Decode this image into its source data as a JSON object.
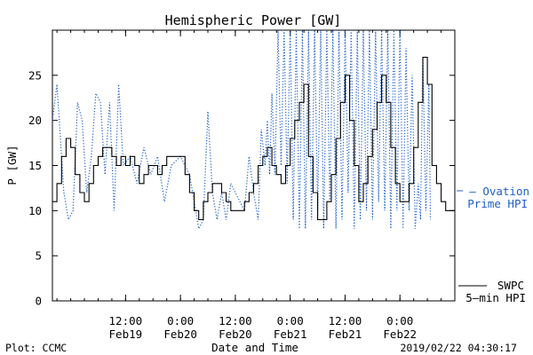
{
  "chart_data": {
    "type": "line",
    "title": "Hemispheric Power [GW]",
    "xlabel": "Date and Time",
    "ylabel": "P [GW]",
    "ylim": [
      0,
      30
    ],
    "yticks": [
      0,
      5,
      10,
      15,
      20,
      25
    ],
    "xlim": [
      "2019-02-18T20:00",
      "2019-02-22T12:00"
    ],
    "xticks": [
      {
        "t": "2019-02-19T12:00",
        "time": "12:00",
        "date": "Feb19"
      },
      {
        "t": "2019-02-20T00:00",
        "time": "0:00",
        "date": "Feb20"
      },
      {
        "t": "2019-02-20T12:00",
        "time": "12:00",
        "date": "Feb20"
      },
      {
        "t": "2019-02-21T00:00",
        "time": "0:00",
        "date": "Feb21"
      },
      {
        "t": "2019-02-21T12:00",
        "time": "12:00",
        "date": "Feb21"
      },
      {
        "t": "2019-02-22T00:00",
        "time": "0:00",
        "date": "Feb22"
      }
    ],
    "grid": false,
    "legend_position": "right",
    "series": [
      {
        "name": "Ovation Prime HPI",
        "legend_lines": [
          "— Ovation",
          "Prime HPI"
        ],
        "style": "dotted",
        "color": "#1f5fc8",
        "points": [
          [
            "2019-02-18T20:00",
            20
          ],
          [
            "2019-02-18T21:00",
            24
          ],
          [
            "2019-02-18T22:30",
            12
          ],
          [
            "2019-02-18T23:30",
            9
          ],
          [
            "2019-02-19T00:30",
            10
          ],
          [
            "2019-02-19T01:30",
            22
          ],
          [
            "2019-02-19T02:30",
            20
          ],
          [
            "2019-02-19T03:30",
            12
          ],
          [
            "2019-02-19T04:30",
            16
          ],
          [
            "2019-02-19T05:30",
            23
          ],
          [
            "2019-02-19T06:30",
            22
          ],
          [
            "2019-02-19T07:30",
            14
          ],
          [
            "2019-02-19T08:30",
            22
          ],
          [
            "2019-02-19T09:30",
            10
          ],
          [
            "2019-02-19T10:30",
            24
          ],
          [
            "2019-02-19T11:30",
            15
          ],
          [
            "2019-02-19T13:00",
            16
          ],
          [
            "2019-02-19T14:30",
            13
          ],
          [
            "2019-02-19T16:00",
            17
          ],
          [
            "2019-02-19T17:30",
            14
          ],
          [
            "2019-02-19T19:00",
            16
          ],
          [
            "2019-02-19T20:30",
            11
          ],
          [
            "2019-02-19T22:00",
            15
          ],
          [
            "2019-02-20T00:00",
            16
          ],
          [
            "2019-02-20T02:00",
            14
          ],
          [
            "2019-02-20T03:00",
            11
          ],
          [
            "2019-02-20T04:00",
            8
          ],
          [
            "2019-02-20T05:00",
            9
          ],
          [
            "2019-02-20T06:00",
            21
          ],
          [
            "2019-02-20T07:00",
            12
          ],
          [
            "2019-02-20T08:00",
            9
          ],
          [
            "2019-02-20T09:00",
            12
          ],
          [
            "2019-02-20T10:00",
            9
          ],
          [
            "2019-02-20T11:00",
            13
          ],
          [
            "2019-02-20T12:00",
            12
          ],
          [
            "2019-02-20T13:00",
            11
          ],
          [
            "2019-02-20T14:00",
            10
          ],
          [
            "2019-02-20T15:00",
            16
          ],
          [
            "2019-02-20T16:00",
            12
          ],
          [
            "2019-02-20T17:00",
            9
          ],
          [
            "2019-02-20T17:40",
            19
          ],
          [
            "2019-02-20T18:30",
            15
          ],
          [
            "2019-02-20T19:00",
            20
          ],
          [
            "2019-02-20T19:30",
            14
          ],
          [
            "2019-02-20T20:00",
            23
          ],
          [
            "2019-02-20T20:40",
            14
          ],
          [
            "2019-02-20T21:20",
            30
          ],
          [
            "2019-02-20T22:00",
            15
          ],
          [
            "2019-02-20T22:40",
            30
          ],
          [
            "2019-02-20T23:20",
            13
          ],
          [
            "2019-02-21T00:00",
            30
          ],
          [
            "2019-02-21T00:40",
            9
          ],
          [
            "2019-02-21T01:20",
            30
          ],
          [
            "2019-02-21T02:00",
            8
          ],
          [
            "2019-02-21T02:40",
            30
          ],
          [
            "2019-02-21T03:20",
            8
          ],
          [
            "2019-02-21T04:00",
            30
          ],
          [
            "2019-02-21T04:40",
            9
          ],
          [
            "2019-02-21T05:20",
            30
          ],
          [
            "2019-02-21T06:00",
            10
          ],
          [
            "2019-02-21T06:40",
            30
          ],
          [
            "2019-02-21T07:20",
            8
          ],
          [
            "2019-02-21T08:00",
            30
          ],
          [
            "2019-02-21T08:40",
            11
          ],
          [
            "2019-02-21T09:20",
            30
          ],
          [
            "2019-02-21T10:00",
            8
          ],
          [
            "2019-02-21T10:40",
            30
          ],
          [
            "2019-02-21T11:20",
            9
          ],
          [
            "2019-02-21T12:00",
            30
          ],
          [
            "2019-02-21T12:40",
            12
          ],
          [
            "2019-02-21T13:20",
            30
          ],
          [
            "2019-02-21T14:00",
            8
          ],
          [
            "2019-02-21T14:40",
            30
          ],
          [
            "2019-02-21T15:20",
            9
          ],
          [
            "2019-02-21T16:00",
            30
          ],
          [
            "2019-02-21T16:40",
            10
          ],
          [
            "2019-02-21T17:20",
            30
          ],
          [
            "2019-02-21T18:00",
            9
          ],
          [
            "2019-02-21T18:40",
            30
          ],
          [
            "2019-02-21T19:20",
            11
          ],
          [
            "2019-02-21T20:00",
            30
          ],
          [
            "2019-02-21T20:40",
            10
          ],
          [
            "2019-02-21T21:20",
            30
          ],
          [
            "2019-02-21T22:00",
            8
          ],
          [
            "2019-02-21T22:40",
            30
          ],
          [
            "2019-02-21T23:20",
            10
          ],
          [
            "2019-02-22T00:00",
            30
          ],
          [
            "2019-02-22T00:40",
            8
          ],
          [
            "2019-02-22T01:20",
            28
          ],
          [
            "2019-02-22T02:00",
            10
          ],
          [
            "2019-02-22T02:40",
            25
          ],
          [
            "2019-02-22T03:20",
            8
          ],
          [
            "2019-02-22T04:00",
            13
          ],
          [
            "2019-02-22T04:30",
            9
          ],
          [
            "2019-02-22T05:00",
            27
          ],
          [
            "2019-02-22T05:40",
            10
          ],
          [
            "2019-02-22T06:20",
            24
          ],
          [
            "2019-02-22T06:40",
            9
          ]
        ]
      },
      {
        "name": "SWPC 5-min HPI",
        "legend_lines": [
          "SWPC",
          "5—min HPI"
        ],
        "style": "solid",
        "color": "#000000",
        "points": [
          [
            "2019-02-18T20:00",
            11
          ],
          [
            "2019-02-18T21:00",
            13
          ],
          [
            "2019-02-18T22:00",
            16
          ],
          [
            "2019-02-18T23:00",
            18
          ],
          [
            "2019-02-19T00:00",
            17
          ],
          [
            "2019-02-19T01:00",
            14
          ],
          [
            "2019-02-19T02:00",
            12
          ],
          [
            "2019-02-19T03:00",
            11
          ],
          [
            "2019-02-19T04:00",
            13
          ],
          [
            "2019-02-19T05:00",
            15
          ],
          [
            "2019-02-19T06:00",
            16
          ],
          [
            "2019-02-19T07:00",
            17
          ],
          [
            "2019-02-19T08:00",
            17
          ],
          [
            "2019-02-19T09:00",
            16
          ],
          [
            "2019-02-19T10:00",
            15
          ],
          [
            "2019-02-19T11:00",
            16
          ],
          [
            "2019-02-19T12:00",
            15
          ],
          [
            "2019-02-19T13:00",
            16
          ],
          [
            "2019-02-19T14:00",
            15
          ],
          [
            "2019-02-19T15:00",
            13
          ],
          [
            "2019-02-19T16:00",
            14
          ],
          [
            "2019-02-19T17:00",
            15
          ],
          [
            "2019-02-19T18:00",
            15
          ],
          [
            "2019-02-19T19:00",
            14
          ],
          [
            "2019-02-19T20:00",
            15
          ],
          [
            "2019-02-19T21:00",
            16
          ],
          [
            "2019-02-19T22:00",
            16
          ],
          [
            "2019-02-19T23:00",
            16
          ],
          [
            "2019-02-20T00:00",
            16
          ],
          [
            "2019-02-20T01:00",
            14
          ],
          [
            "2019-02-20T02:00",
            12
          ],
          [
            "2019-02-20T03:00",
            10
          ],
          [
            "2019-02-20T04:00",
            9
          ],
          [
            "2019-02-20T05:00",
            11
          ],
          [
            "2019-02-20T06:00",
            12
          ],
          [
            "2019-02-20T07:00",
            13
          ],
          [
            "2019-02-20T08:00",
            13
          ],
          [
            "2019-02-20T09:00",
            12
          ],
          [
            "2019-02-20T10:00",
            11
          ],
          [
            "2019-02-20T11:00",
            10
          ],
          [
            "2019-02-20T12:00",
            10
          ],
          [
            "2019-02-20T13:00",
            10
          ],
          [
            "2019-02-20T14:00",
            11
          ],
          [
            "2019-02-20T15:00",
            12
          ],
          [
            "2019-02-20T16:00",
            13
          ],
          [
            "2019-02-20T17:00",
            15
          ],
          [
            "2019-02-20T18:00",
            16
          ],
          [
            "2019-02-20T19:00",
            17
          ],
          [
            "2019-02-20T20:00",
            15
          ],
          [
            "2019-02-20T21:00",
            14
          ],
          [
            "2019-02-20T22:00",
            13
          ],
          [
            "2019-02-20T23:00",
            15
          ],
          [
            "2019-02-21T00:00",
            18
          ],
          [
            "2019-02-21T01:00",
            20
          ],
          [
            "2019-02-21T02:00",
            22
          ],
          [
            "2019-02-21T03:00",
            24
          ],
          [
            "2019-02-21T04:00",
            16
          ],
          [
            "2019-02-21T05:00",
            12
          ],
          [
            "2019-02-21T06:00",
            9
          ],
          [
            "2019-02-21T07:00",
            9
          ],
          [
            "2019-02-21T08:00",
            11
          ],
          [
            "2019-02-21T09:00",
            14
          ],
          [
            "2019-02-21T10:00",
            18
          ],
          [
            "2019-02-21T11:00",
            22
          ],
          [
            "2019-02-21T12:00",
            25
          ],
          [
            "2019-02-21T13:00",
            20
          ],
          [
            "2019-02-21T14:00",
            15
          ],
          [
            "2019-02-21T15:00",
            11
          ],
          [
            "2019-02-21T16:00",
            13
          ],
          [
            "2019-02-21T17:00",
            16
          ],
          [
            "2019-02-21T18:00",
            19
          ],
          [
            "2019-02-21T19:00",
            22
          ],
          [
            "2019-02-21T20:00",
            25
          ],
          [
            "2019-02-21T21:00",
            22
          ],
          [
            "2019-02-21T22:00",
            17
          ],
          [
            "2019-02-21T23:00",
            13
          ],
          [
            "2019-02-22T00:00",
            11
          ],
          [
            "2019-02-22T01:00",
            11
          ],
          [
            "2019-02-22T02:00",
            13
          ],
          [
            "2019-02-22T03:00",
            17
          ],
          [
            "2019-02-22T04:00",
            22
          ],
          [
            "2019-02-22T05:00",
            27
          ],
          [
            "2019-02-22T06:00",
            24
          ],
          [
            "2019-02-22T07:00",
            15
          ],
          [
            "2019-02-22T08:00",
            13
          ],
          [
            "2019-02-22T09:00",
            11
          ],
          [
            "2019-02-22T10:00",
            10
          ],
          [
            "2019-02-22T11:00",
            10
          ],
          [
            "2019-02-22T12:00",
            10
          ]
        ]
      }
    ]
  },
  "footer": {
    "left": "Plot: CCMC",
    "timestamp": "2019/02/22 04:30:17"
  }
}
